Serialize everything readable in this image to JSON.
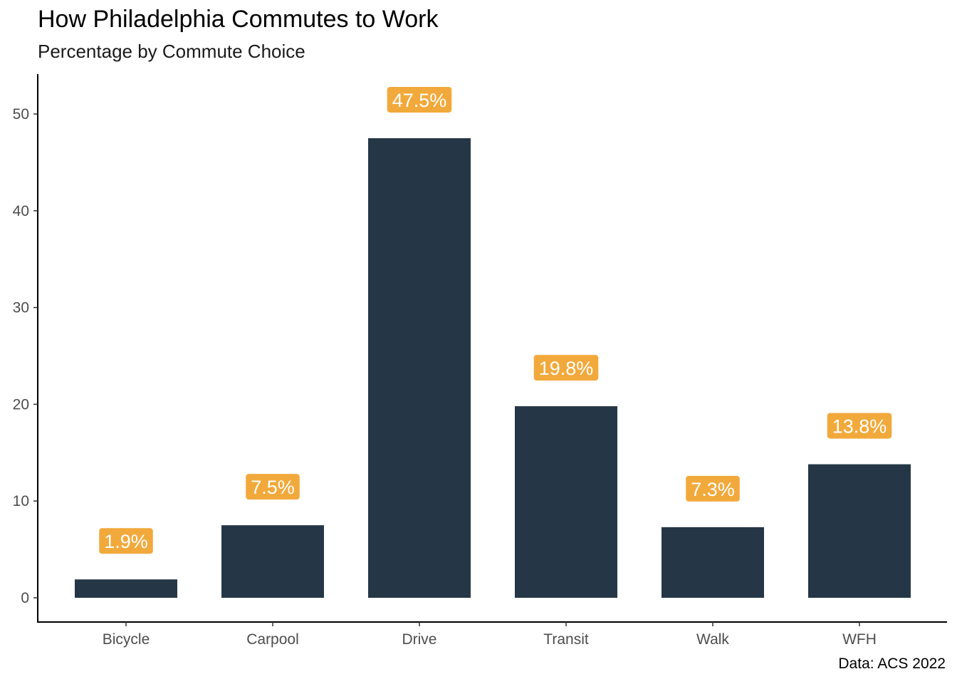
{
  "title": "How Philadelphia Commutes to Work",
  "subtitle": "Percentage by Commute Choice",
  "caption": "Data: ACS 2022",
  "colors": {
    "bar": "#253746",
    "label_fill": "#F2A93B",
    "axis": "#000000"
  },
  "chart_data": {
    "type": "bar",
    "title": "How Philadelphia Commutes to Work",
    "subtitle": "Percentage by Commute Choice",
    "caption": "Data: ACS 2022",
    "xlabel": "",
    "ylabel": "",
    "categories": [
      "Bicycle",
      "Carpool",
      "Drive",
      "Transit",
      "Walk",
      "WFH"
    ],
    "values": [
      1.9,
      7.5,
      47.5,
      19.8,
      7.3,
      13.8
    ],
    "data_labels": [
      "1.9%",
      "7.5%",
      "47.5%",
      "19.8%",
      "7.3%",
      "13.8%"
    ],
    "yticks": [
      0,
      10,
      20,
      30,
      40,
      50
    ],
    "ylim": [
      0,
      53
    ],
    "grid": false,
    "legend": "none"
  }
}
